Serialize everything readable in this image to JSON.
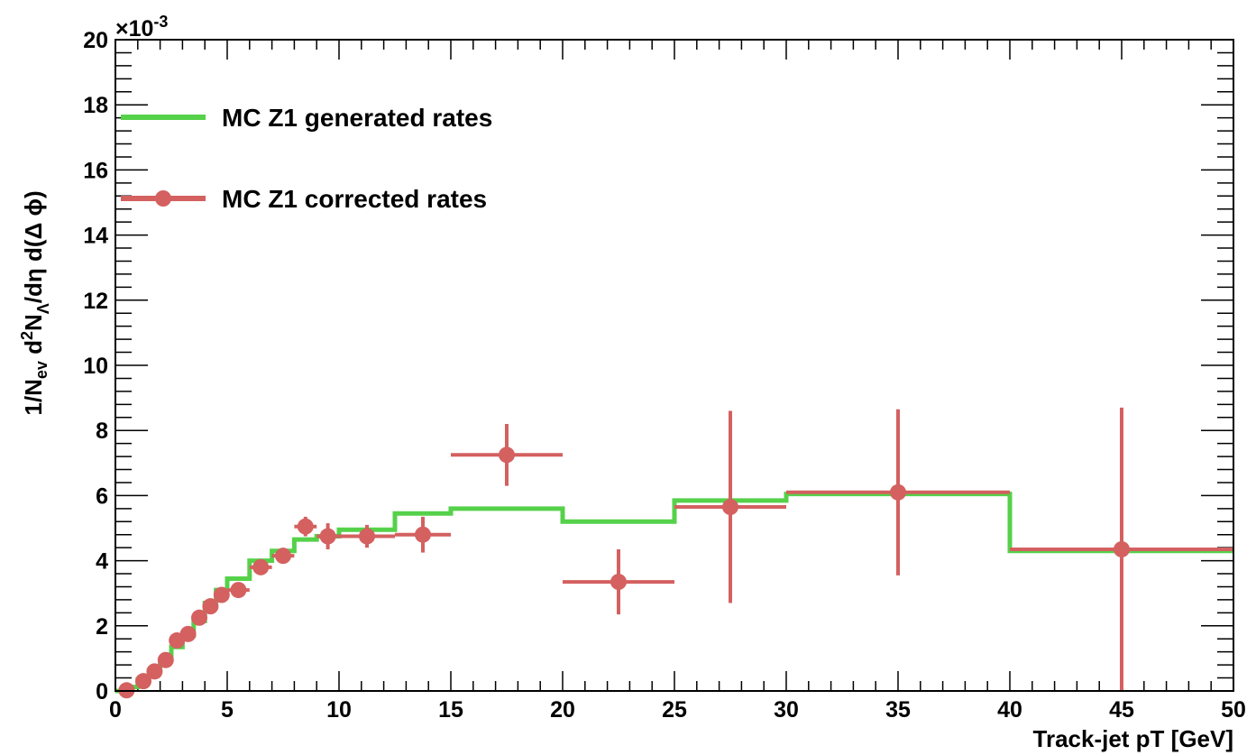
{
  "chart_data": {
    "type": "line",
    "xlabel": "Track-jet pT [GeV]",
    "ylabel": {
      "parts": [
        "1/N",
        "ev",
        " d",
        "2",
        "N",
        "Λ",
        "/dη d(Δ ϕ)"
      ]
    },
    "y_scale_label": {
      "prefix": "×10",
      "exponent": "-3"
    },
    "xlim": [
      0,
      50
    ],
    "ylim": [
      0,
      20
    ],
    "x_ticks": [
      "0",
      "5",
      "10",
      "15",
      "20",
      "25",
      "30",
      "35",
      "40",
      "45",
      "50"
    ],
    "y_ticks": [
      "0",
      "2",
      "4",
      "6",
      "8",
      "10",
      "12",
      "14",
      "16",
      "18",
      "20"
    ],
    "legend": {
      "placement": "top-left",
      "entries": [
        {
          "label": "MC Z1 generated rates",
          "color": "#55d14a",
          "style": "line"
        },
        {
          "label": "MC Z1 corrected rates",
          "color": "#d46060",
          "style": "line-marker"
        }
      ]
    },
    "series": [
      {
        "name": "MC Z1 generated rates",
        "kind": "histogram",
        "color": "#55d14a",
        "bin_edges": [
          0,
          0.5,
          1,
          1.5,
          2,
          2.5,
          3,
          3.5,
          4,
          4.5,
          5,
          6,
          7,
          8,
          9,
          10,
          12.5,
          15,
          20,
          25,
          30,
          40,
          50
        ],
        "values": [
          0.0,
          0.12,
          0.35,
          0.62,
          0.95,
          1.35,
          1.7,
          2.15,
          2.7,
          3.1,
          3.45,
          4.0,
          4.3,
          4.65,
          4.75,
          4.95,
          5.45,
          5.6,
          5.2,
          5.85,
          6.05,
          4.3
        ]
      },
      {
        "name": "MC Z1 corrected rates",
        "kind": "points",
        "color": "#d46060",
        "points": [
          {
            "x": 0.5,
            "y": 0.02,
            "xerr": 0.25,
            "yerr": 0.05
          },
          {
            "x": 1.25,
            "y": 0.3,
            "xerr": 0.25,
            "yerr": 0.05
          },
          {
            "x": 1.75,
            "y": 0.6,
            "xerr": 0.25,
            "yerr": 0.05
          },
          {
            "x": 2.25,
            "y": 0.95,
            "xerr": 0.25,
            "yerr": 0.05
          },
          {
            "x": 2.75,
            "y": 1.55,
            "xerr": 0.25,
            "yerr": 0.06
          },
          {
            "x": 3.25,
            "y": 1.75,
            "xerr": 0.25,
            "yerr": 0.06
          },
          {
            "x": 3.75,
            "y": 2.25,
            "xerr": 0.25,
            "yerr": 0.06
          },
          {
            "x": 4.25,
            "y": 2.6,
            "xerr": 0.25,
            "yerr": 0.06
          },
          {
            "x": 4.75,
            "y": 2.95,
            "xerr": 0.25,
            "yerr": 0.06
          },
          {
            "x": 5.5,
            "y": 3.1,
            "xerr": 0.5,
            "yerr": 0.08
          },
          {
            "x": 6.5,
            "y": 3.8,
            "xerr": 0.5,
            "yerr": 0.1
          },
          {
            "x": 7.5,
            "y": 4.15,
            "xerr": 0.5,
            "yerr": 0.15
          },
          {
            "x": 8.5,
            "y": 5.05,
            "xerr": 0.5,
            "yerr": 0.3
          },
          {
            "x": 9.5,
            "y": 4.75,
            "xerr": 0.5,
            "yerr": 0.4
          },
          {
            "x": 11.25,
            "y": 4.75,
            "xerr": 1.25,
            "yerr": 0.35
          },
          {
            "x": 13.75,
            "y": 4.8,
            "xerr": 1.25,
            "yerr": 0.55
          },
          {
            "x": 17.5,
            "y": 7.25,
            "xerr": 2.5,
            "yerr": 0.95
          },
          {
            "x": 22.5,
            "y": 3.35,
            "xerr": 2.5,
            "yerr": 1.0
          },
          {
            "x": 27.5,
            "y": 5.65,
            "xerr": 2.5,
            "yerr": 2.95
          },
          {
            "x": 35,
            "y": 6.1,
            "xerr": 5,
            "yerr": 2.55
          },
          {
            "x": 45,
            "y": 4.35,
            "xerr": 5,
            "yerr": 4.35
          }
        ]
      }
    ]
  }
}
